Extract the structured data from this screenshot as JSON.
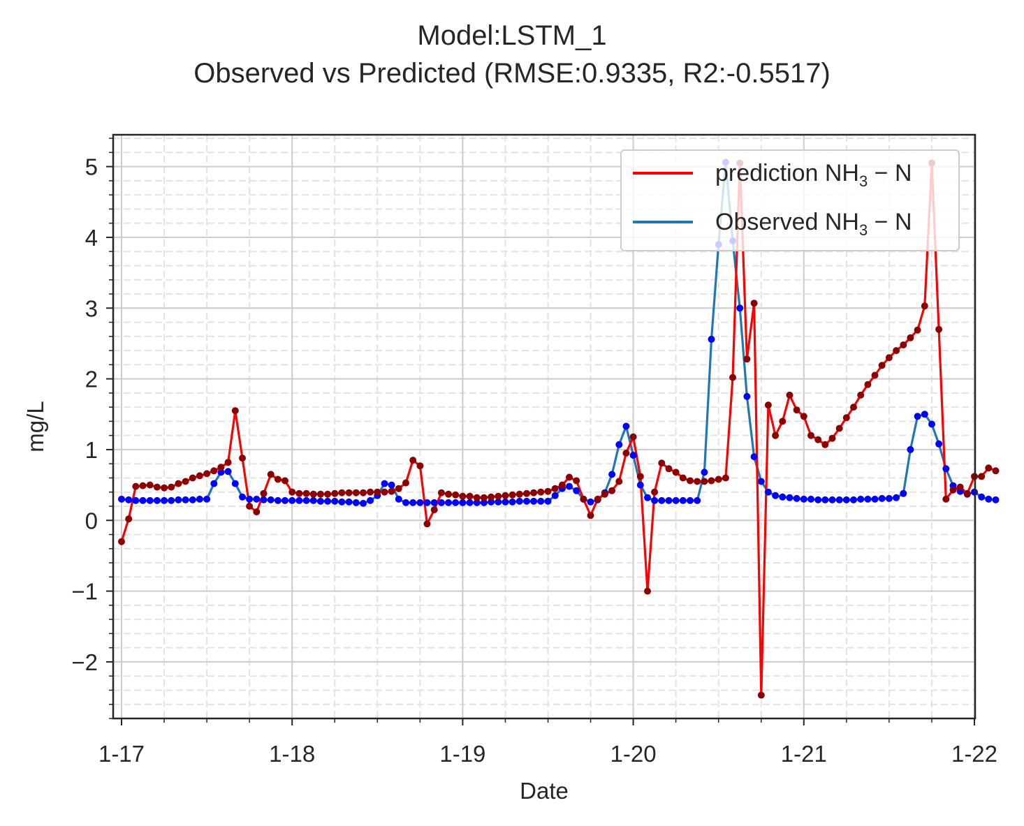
{
  "title": {
    "line1": "Model:LSTM_1",
    "line2": "Observed vs Predicted (RMSE:0.9335, R2:-0.5517)"
  },
  "chart_data": {
    "type": "line",
    "xlabel": "Date",
    "ylabel": "mg/L",
    "x_ticks": [
      "1-17",
      "1-18",
      "1-19",
      "1-20",
      "1-21",
      "1-22"
    ],
    "y_ticks": [
      "−2",
      "−1",
      "0",
      "1",
      "2",
      "3",
      "4",
      "5"
    ],
    "xlim": [
      "1-17",
      "1-22"
    ],
    "ylim": [
      -2.8,
      5.45
    ],
    "grid": true,
    "legend_position": "top-right",
    "x_step": "1 hour",
    "series": [
      {
        "name": "prediction NH3 − N",
        "legend_base": "prediction NH",
        "legend_sub": "3",
        "legend_tail": " − N",
        "color": "#ff0000",
        "marker_color": "#8b0000",
        "values": [
          -0.3,
          0.02,
          0.48,
          0.49,
          0.5,
          0.47,
          0.46,
          0.47,
          0.52,
          0.55,
          0.6,
          0.63,
          0.66,
          0.7,
          0.75,
          0.82,
          1.55,
          0.88,
          0.2,
          0.12,
          0.38,
          0.65,
          0.58,
          0.56,
          0.4,
          0.38,
          0.38,
          0.37,
          0.37,
          0.37,
          0.38,
          0.39,
          0.39,
          0.39,
          0.39,
          0.4,
          0.4,
          0.4,
          0.41,
          0.45,
          0.53,
          0.85,
          0.77,
          -0.05,
          0.15,
          0.39,
          0.37,
          0.36,
          0.34,
          0.34,
          0.32,
          0.32,
          0.33,
          0.34,
          0.35,
          0.36,
          0.37,
          0.38,
          0.39,
          0.4,
          0.41,
          0.45,
          0.5,
          0.61,
          0.56,
          0.3,
          0.07,
          0.3,
          0.37,
          0.42,
          0.55,
          0.95,
          1.18,
          0.62,
          -1.0,
          0.4,
          0.81,
          0.73,
          0.68,
          0.6,
          0.56,
          0.55,
          0.55,
          0.56,
          0.58,
          0.6,
          2.02,
          5.05,
          2.28,
          3.07,
          -2.47,
          1.63,
          1.2,
          1.4,
          1.77,
          1.56,
          1.47,
          1.2,
          1.14,
          1.07,
          1.16,
          1.3,
          1.45,
          1.6,
          1.77,
          1.92,
          2.05,
          2.19,
          2.3,
          2.4,
          2.48,
          2.58,
          2.69,
          3.03,
          5.05,
          2.7,
          0.3,
          0.43,
          0.47,
          0.38,
          0.62,
          0.62,
          0.74,
          0.7
        ]
      },
      {
        "name": "Observed NH3 − N",
        "legend_base": "Observed NH",
        "legend_sub": "3",
        "legend_tail": " − N",
        "color": "#1f77b4",
        "marker_color": "#0000ff",
        "values": [
          0.3,
          0.29,
          0.28,
          0.28,
          0.28,
          0.28,
          0.28,
          0.28,
          0.29,
          0.29,
          0.29,
          0.3,
          0.3,
          0.52,
          0.68,
          0.69,
          0.52,
          0.33,
          0.3,
          0.3,
          0.29,
          0.29,
          0.28,
          0.28,
          0.28,
          0.28,
          0.28,
          0.28,
          0.27,
          0.27,
          0.27,
          0.26,
          0.26,
          0.25,
          0.24,
          0.28,
          0.35,
          0.52,
          0.5,
          0.3,
          0.25,
          0.25,
          0.25,
          0.25,
          0.25,
          0.25,
          0.25,
          0.25,
          0.25,
          0.25,
          0.25,
          0.25,
          0.26,
          0.26,
          0.26,
          0.26,
          0.27,
          0.27,
          0.27,
          0.27,
          0.27,
          0.35,
          0.45,
          0.48,
          0.42,
          0.3,
          0.26,
          0.29,
          0.39,
          0.65,
          1.07,
          1.33,
          0.92,
          0.5,
          0.32,
          0.28,
          0.28,
          0.28,
          0.28,
          0.28,
          0.28,
          0.28,
          0.68,
          2.56,
          3.9,
          5.06,
          3.95,
          3.0,
          1.75,
          0.9,
          0.55,
          0.4,
          0.35,
          0.33,
          0.32,
          0.31,
          0.3,
          0.3,
          0.29,
          0.29,
          0.29,
          0.29,
          0.29,
          0.29,
          0.3,
          0.3,
          0.3,
          0.31,
          0.31,
          0.32,
          0.38,
          1.0,
          1.47,
          1.5,
          1.36,
          1.08,
          0.73,
          0.49,
          0.41,
          0.37,
          0.4,
          0.33,
          0.3,
          0.29
        ]
      }
    ]
  }
}
